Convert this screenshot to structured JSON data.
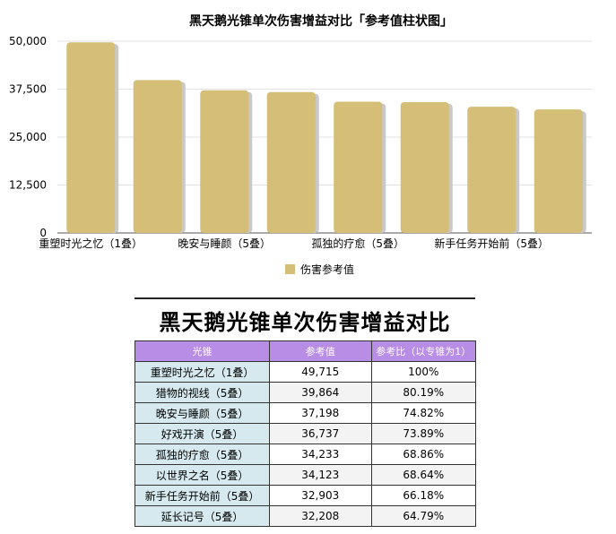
{
  "chart_data": {
    "type": "bar",
    "title": "黑天鹅光锥单次伤害增益对比「参考值柱状图」",
    "categories": [
      "重塑时光之忆（1叠）",
      "猎物的视线（5叠）",
      "晚安与睡颜（5叠）",
      "好戏开演（5叠）",
      "孤独的疗愈（5叠）",
      "以世界之名（5叠）",
      "新手任务开始前（5叠）",
      "延长记号（5叠）"
    ],
    "category_labels_shown": [
      "重塑时光之忆（1叠）",
      "",
      "晚安与睡颜（5叠）",
      "",
      "孤独的疗愈（5叠）",
      "",
      "新手任务开始前（5叠）",
      ""
    ],
    "series": [
      {
        "name": "伤害参考值",
        "values": [
          49715,
          39864,
          37198,
          36737,
          34233,
          34123,
          32903,
          32208
        ]
      }
    ],
    "ylim": [
      0,
      50000
    ],
    "yticks": [
      "0",
      "12,500",
      "25,000",
      "37,500",
      "50,000"
    ],
    "ytick_values": [
      0,
      12500,
      25000,
      37500,
      50000
    ],
    "grid": true,
    "legend_position": "bottom",
    "bar_color": "#d4be78",
    "bar_shadow_color": "#c9c9c9"
  },
  "table": {
    "title": "黑天鹅光锥单次伤害增益对比",
    "headers": [
      "光锥",
      "参考值",
      "参考比（以专锥为1）"
    ],
    "rows": [
      [
        "重塑时光之忆（1叠）",
        "49,715",
        "100%"
      ],
      [
        "猎物的视线（5叠）",
        "39,864",
        "80.19%"
      ],
      [
        "晚安与睡颜（5叠）",
        "37,198",
        "74.82%"
      ],
      [
        "好戏开演（5叠）",
        "36,737",
        "73.89%"
      ],
      [
        "孤独的疗愈（5叠）",
        "34,233",
        "68.86%"
      ],
      [
        "以世界之名（5叠）",
        "34,123",
        "68.64%"
      ],
      [
        "新手任务开始前（5叠）",
        "32,903",
        "66.18%"
      ],
      [
        "延长记号（5叠）",
        "32,208",
        "64.79%"
      ]
    ],
    "header_color": "#b88de6",
    "name_column_color": "#d6e9ee"
  }
}
